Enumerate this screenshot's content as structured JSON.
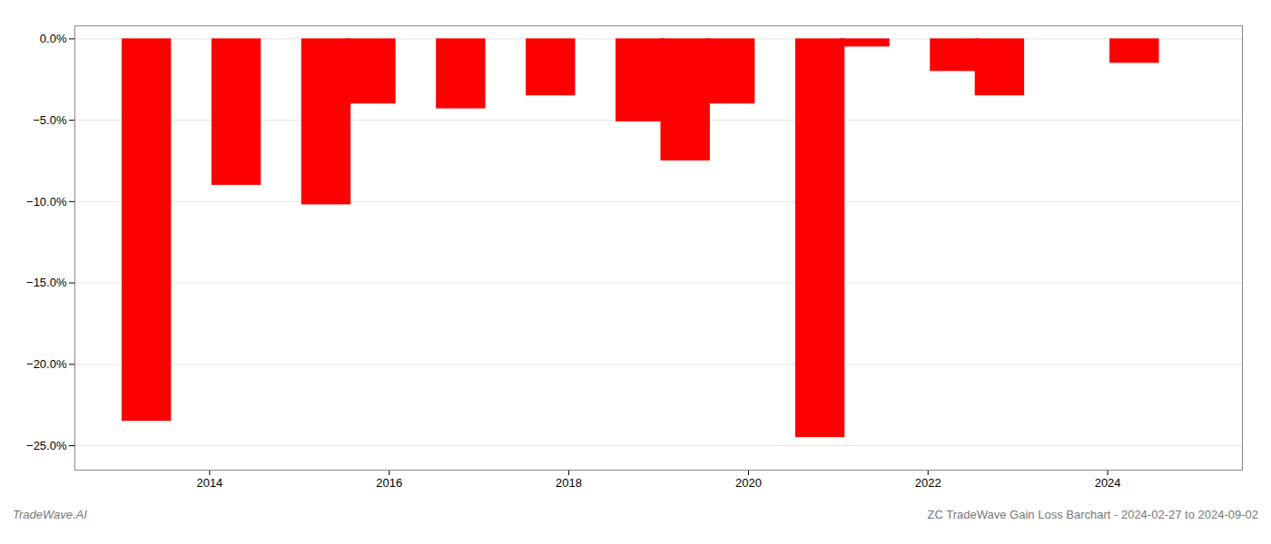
{
  "chart_data": {
    "type": "bar",
    "title": "ZC TradeWave Gain Loss Barchart - 2024-02-27 to 2024-09-02",
    "annotations": [
      "TradeWave.AI"
    ],
    "x": [
      2013.3,
      2014.3,
      2015.3,
      2015.8,
      2016.8,
      2017.8,
      2018.8,
      2019.3,
      2019.8,
      2020.8,
      2021.3,
      2022.3,
      2022.8,
      2024.3
    ],
    "values": [
      -23.5,
      -9.0,
      -10.2,
      -4.0,
      -4.3,
      -3.5,
      -5.1,
      -7.5,
      -4.0,
      -24.5,
      -0.5,
      -2.0,
      -3.5,
      -1.5
    ],
    "color": "#ff0000",
    "xlim": [
      2012.5,
      2025.5
    ],
    "xticks": [
      2014,
      2016,
      2018,
      2020,
      2022,
      2024
    ],
    "ylim": [
      -26.5,
      0.8
    ],
    "yticks": [
      {
        "value": 0,
        "label": "0.0%"
      },
      {
        "value": -5,
        "label": "−5.0%"
      },
      {
        "value": -10,
        "label": "−10.0%"
      },
      {
        "value": -15,
        "label": "−15.0%"
      },
      {
        "value": -20,
        "label": "−20.0%"
      },
      {
        "value": -25,
        "label": "−25.0%"
      }
    ],
    "grid": true
  }
}
